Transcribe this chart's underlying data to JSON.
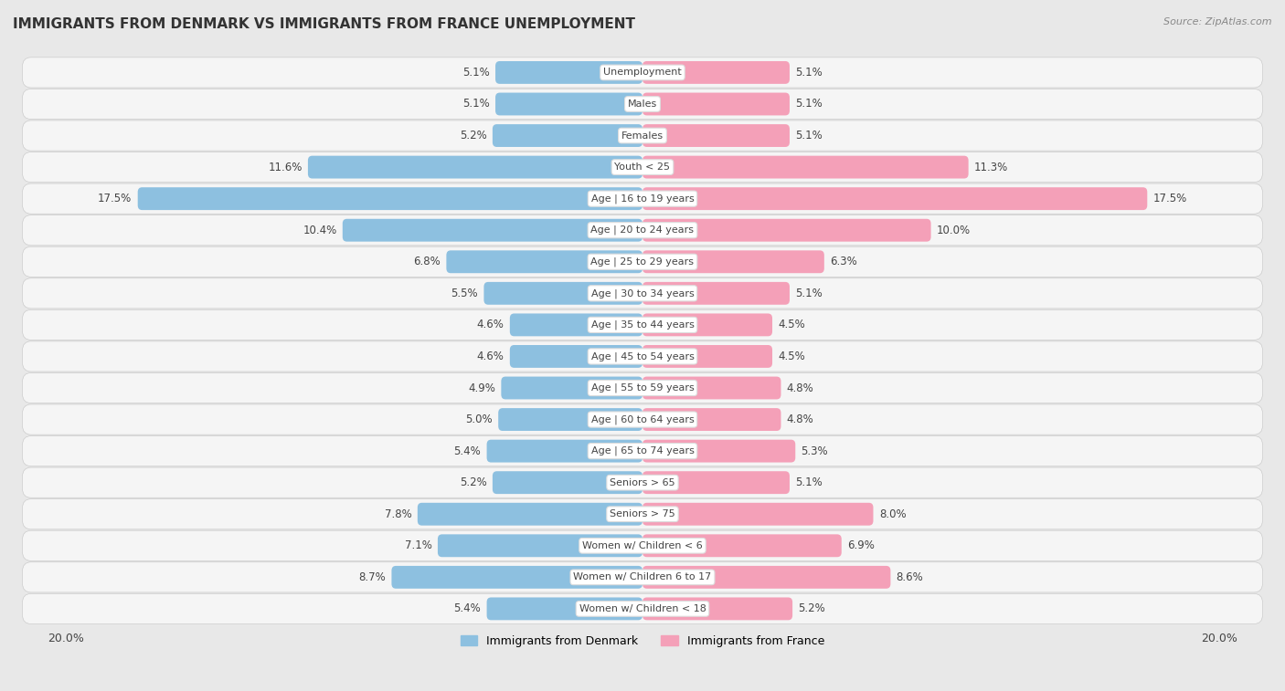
{
  "title": "IMMIGRANTS FROM DENMARK VS IMMIGRANTS FROM FRANCE UNEMPLOYMENT",
  "source": "Source: ZipAtlas.com",
  "categories": [
    "Unemployment",
    "Males",
    "Females",
    "Youth < 25",
    "Age | 16 to 19 years",
    "Age | 20 to 24 years",
    "Age | 25 to 29 years",
    "Age | 30 to 34 years",
    "Age | 35 to 44 years",
    "Age | 45 to 54 years",
    "Age | 55 to 59 years",
    "Age | 60 to 64 years",
    "Age | 65 to 74 years",
    "Seniors > 65",
    "Seniors > 75",
    "Women w/ Children < 6",
    "Women w/ Children 6 to 17",
    "Women w/ Children < 18"
  ],
  "denmark_values": [
    5.1,
    5.1,
    5.2,
    11.6,
    17.5,
    10.4,
    6.8,
    5.5,
    4.6,
    4.6,
    4.9,
    5.0,
    5.4,
    5.2,
    7.8,
    7.1,
    8.7,
    5.4
  ],
  "france_values": [
    5.1,
    5.1,
    5.1,
    11.3,
    17.5,
    10.0,
    6.3,
    5.1,
    4.5,
    4.5,
    4.8,
    4.8,
    5.3,
    5.1,
    8.0,
    6.9,
    8.6,
    5.2
  ],
  "denmark_color": "#8dc0e0",
  "france_color": "#f4a0b8",
  "denmark_label": "Immigrants from Denmark",
  "france_label": "Immigrants from France",
  "background_color": "#e8e8e8",
  "row_bg": "#f5f5f5",
  "max_value": 20.0,
  "label_fontsize": 8.5,
  "title_fontsize": 11,
  "bar_height": 0.72
}
